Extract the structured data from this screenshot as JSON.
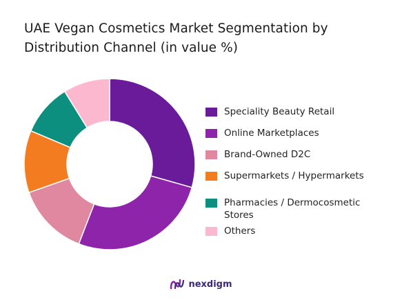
{
  "brand": {
    "name": "nexdigm"
  },
  "chart_data": {
    "type": "pie",
    "title": "UAE Vegan Cosmetics Market Segmentation by Distribution Channel (in value %)",
    "donut": true,
    "legend_position": "right",
    "series": [
      {
        "name": "Speciality Beauty Retail",
        "value": 30,
        "color": "#6a1b9a"
      },
      {
        "name": "Online Marketplaces",
        "value": 27,
        "color": "#8e24aa"
      },
      {
        "name": "Brand-Owned D2C",
        "value": 14,
        "color": "#e088a0"
      },
      {
        "name": "Supermarkets / Hypermarkets",
        "value": 12,
        "color": "#f47c20"
      },
      {
        "name": "Pharmacies / Dermocosmetic Stores",
        "value": 10,
        "color": "#0d8f80"
      },
      {
        "name": "Others",
        "value": 9,
        "color": "#fbb8cf"
      }
    ]
  }
}
